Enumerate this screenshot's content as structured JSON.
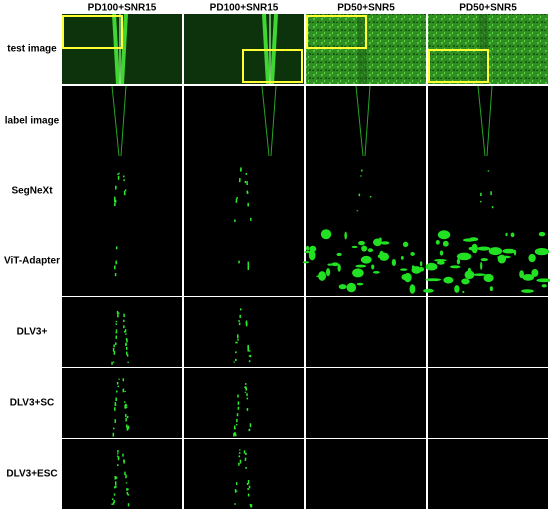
{
  "columns": [
    "PD100+SNR15",
    "PD100+SNR15",
    "PD50+SNR5",
    "PD50+SNR5"
  ],
  "rows": [
    "test image",
    "label image",
    "SegNeXt",
    "ViT-Adapter",
    "DLV3+",
    "DLV3+SC",
    "DLV3+ESC"
  ]
}
